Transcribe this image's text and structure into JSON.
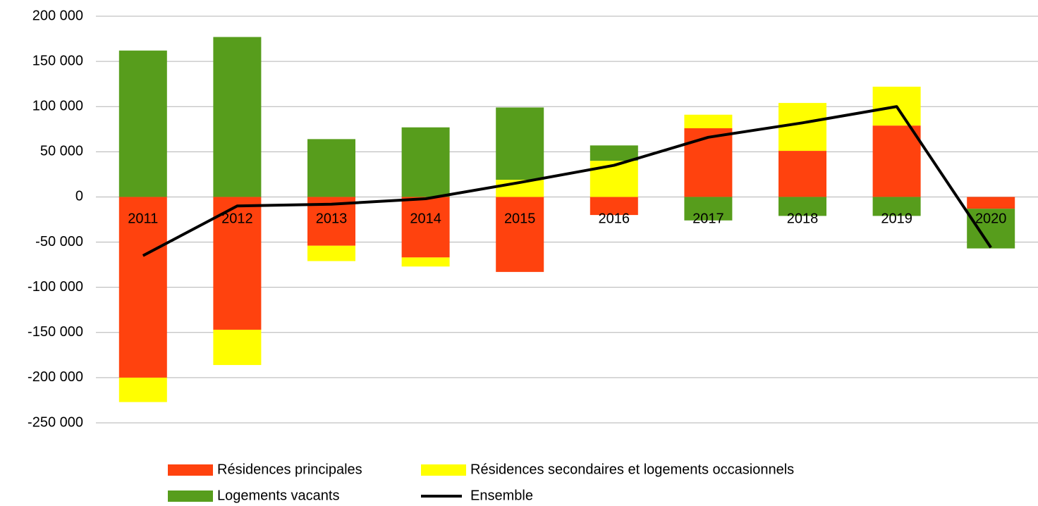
{
  "chart_data": {
    "type": "stacked-bar-line",
    "categories": [
      "2011",
      "2012",
      "2013",
      "2014",
      "2015",
      "2016",
      "2017",
      "2018",
      "2019",
      "2020"
    ],
    "series": [
      {
        "name": "Résidences principales",
        "color": "#ff420e",
        "values": [
          -200000,
          -147000,
          -54000,
          -67000,
          -83000,
          -20000,
          76000,
          51000,
          79000,
          -13000
        ]
      },
      {
        "name": "Résidences secondaires et logements occasionnels",
        "color": "#ffff00",
        "values": [
          -27000,
          -39000,
          -17000,
          -10000,
          19000,
          40000,
          15000,
          53000,
          43000,
          0
        ]
      },
      {
        "name": "Logements vacants",
        "color": "#579d1c",
        "values": [
          162000,
          177000,
          64000,
          77000,
          80000,
          17000,
          -26000,
          -21000,
          -21000,
          -44000
        ]
      },
      {
        "name": "Ensemble",
        "color": "#000000",
        "type": "line",
        "values": [
          -65000,
          -10000,
          -8000,
          -2000,
          16000,
          35000,
          66000,
          82000,
          100000,
          -56000
        ]
      }
    ],
    "ylim": [
      -250000,
      200000
    ],
    "yticks": [
      {
        "value": -250000,
        "label": "-250 000"
      },
      {
        "value": -200000,
        "label": "-200 000"
      },
      {
        "value": -150000,
        "label": "-150 000"
      },
      {
        "value": -100000,
        "label": "-100 000"
      },
      {
        "value": -50000,
        "label": "-50 000"
      },
      0,
      {
        "value": 50000,
        "label": "50 000"
      },
      {
        "value": 100000,
        "label": "100 000"
      },
      {
        "value": 150000,
        "label": "150 000"
      },
      {
        "value": 200000,
        "label": "200 000"
      }
    ],
    "grid": true,
    "legend": "bottom"
  }
}
